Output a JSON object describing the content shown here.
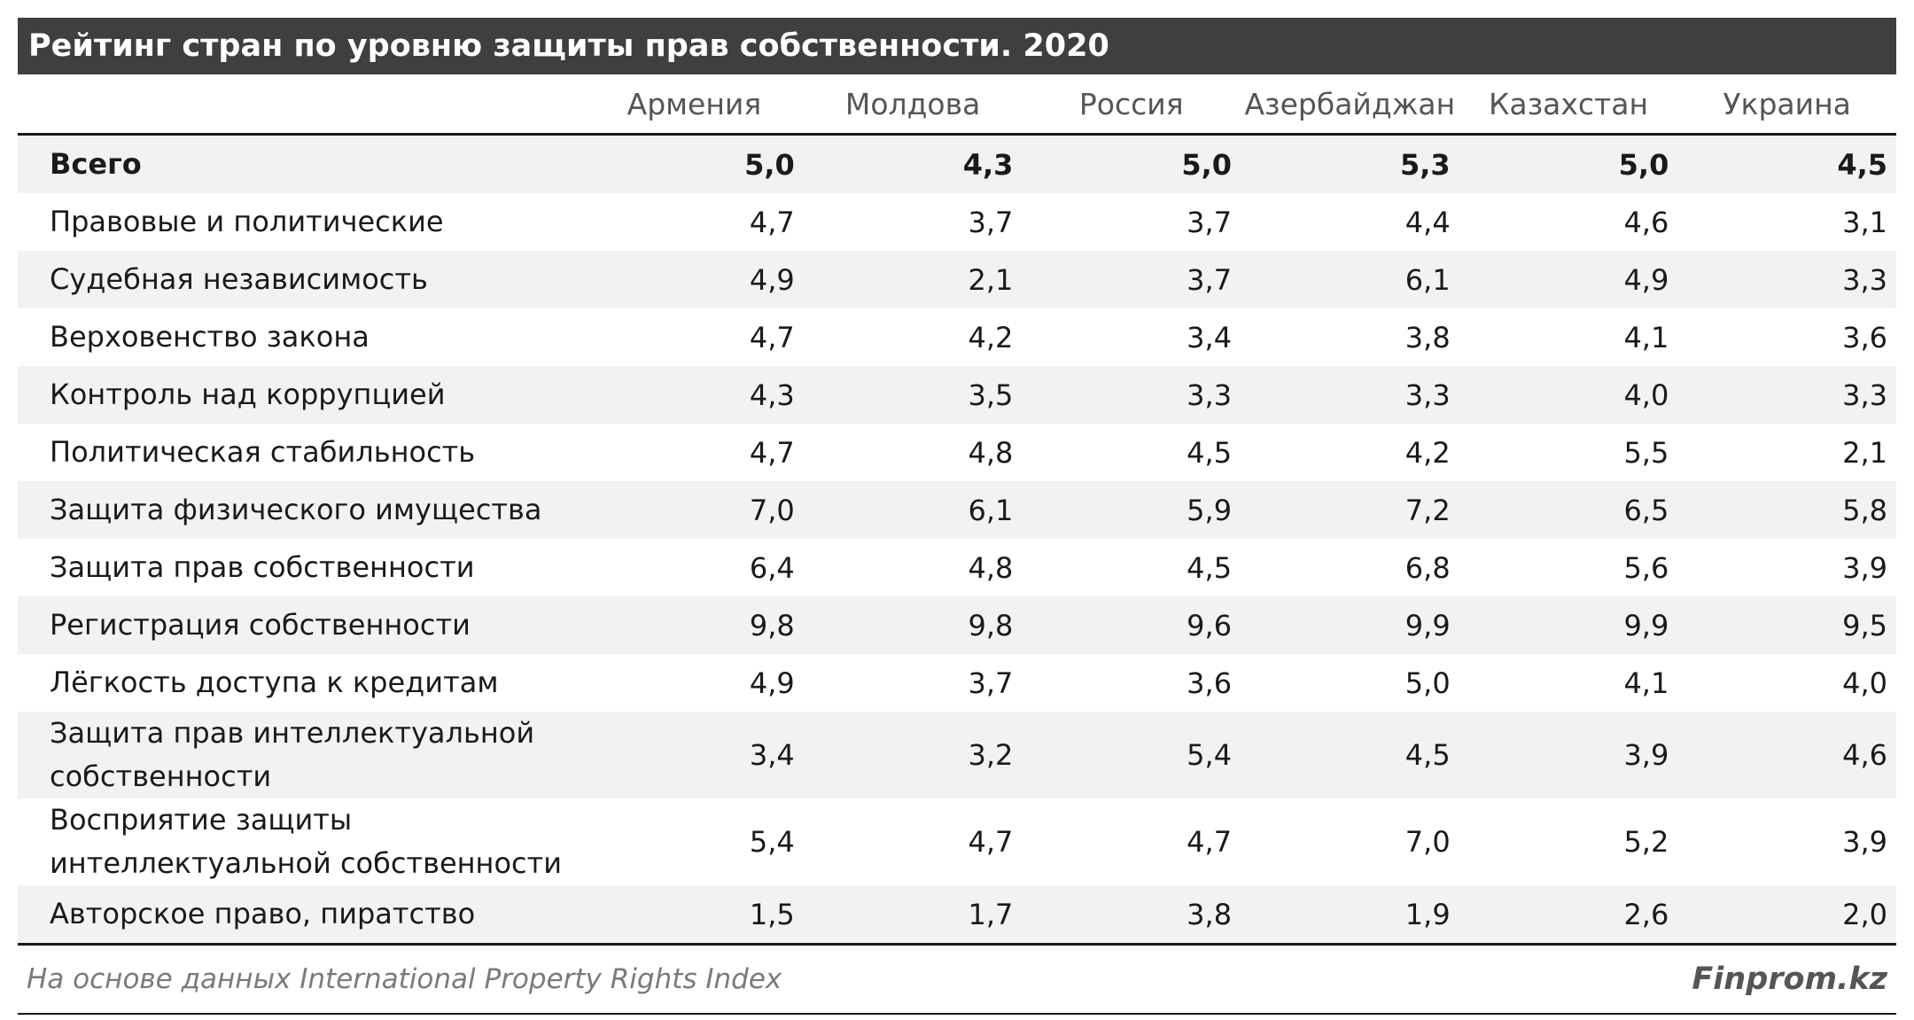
{
  "title": "Рейтинг стран по уровню защиты прав собственности. 2020",
  "columns": [
    "Армения",
    "Молдова",
    "Россия",
    "Азербайджан",
    "Казахстан",
    "Украина"
  ],
  "rows": [
    {
      "label": "Всего",
      "values": [
        "5,0",
        "4,3",
        "5,0",
        "5,3",
        "5,0",
        "4,5"
      ]
    },
    {
      "label": "Правовые и политические",
      "values": [
        "4,7",
        "3,7",
        "3,7",
        "4,4",
        "4,6",
        "3,1"
      ]
    },
    {
      "label": "Судебная независимость",
      "values": [
        "4,9",
        "2,1",
        "3,7",
        "6,1",
        "4,9",
        "3,3"
      ]
    },
    {
      "label": "Верховенство закона",
      "values": [
        "4,7",
        "4,2",
        "3,4",
        "3,8",
        "4,1",
        "3,6"
      ]
    },
    {
      "label": "Контроль над коррупцией",
      "values": [
        "4,3",
        "3,5",
        "3,3",
        "3,3",
        "4,0",
        "3,3"
      ]
    },
    {
      "label": "Политическая стабильность",
      "values": [
        "4,7",
        "4,8",
        "4,5",
        "4,2",
        "5,5",
        "2,1"
      ]
    },
    {
      "label": "Защита физического имущества",
      "values": [
        "7,0",
        "6,1",
        "5,9",
        "7,2",
        "6,5",
        "5,8"
      ]
    },
    {
      "label": "Защита прав собственности",
      "values": [
        "6,4",
        "4,8",
        "4,5",
        "6,8",
        "5,6",
        "3,9"
      ]
    },
    {
      "label": "Регистрация собственности",
      "values": [
        "9,8",
        "9,8",
        "9,6",
        "9,9",
        "9,9",
        "9,5"
      ]
    },
    {
      "label": "Лёгкость доступа к кредитам",
      "values": [
        "4,9",
        "3,7",
        "3,6",
        "5,0",
        "4,1",
        "4,0"
      ]
    },
    {
      "label": "Защита прав интеллектуальной собственности",
      "values": [
        "3,4",
        "3,2",
        "5,4",
        "4,5",
        "3,9",
        "4,6"
      ]
    },
    {
      "label": "Восприятие защиты интеллектуальной собственности",
      "values": [
        "5,4",
        "4,7",
        "4,7",
        "7,0",
        "5,2",
        "3,9"
      ]
    },
    {
      "label": "Авторское право, пиратство",
      "values": [
        "1,5",
        "1,7",
        "3,8",
        "1,9",
        "2,6",
        "2,0"
      ]
    }
  ],
  "footer": {
    "source": "На основе данных International Property Rights Index",
    "brand": "Finprom.kz"
  },
  "chart_data": {
    "type": "table",
    "title": "Рейтинг стран по уровню защиты прав собственности. 2020",
    "columns": [
      "Армения",
      "Молдова",
      "Россия",
      "Азербайджан",
      "Казахстан",
      "Украина"
    ],
    "rows": [
      {
        "label": "Всего",
        "values": [
          5.0,
          4.3,
          5.0,
          5.3,
          5.0,
          4.5
        ]
      },
      {
        "label": "Правовые и политические",
        "values": [
          4.7,
          3.7,
          3.7,
          4.4,
          4.6,
          3.1
        ]
      },
      {
        "label": "Судебная независимость",
        "values": [
          4.9,
          2.1,
          3.7,
          6.1,
          4.9,
          3.3
        ]
      },
      {
        "label": "Верховенство закона",
        "values": [
          4.7,
          4.2,
          3.4,
          3.8,
          4.1,
          3.6
        ]
      },
      {
        "label": "Контроль над коррупцией",
        "values": [
          4.3,
          3.5,
          3.3,
          3.3,
          4.0,
          3.3
        ]
      },
      {
        "label": "Политическая стабильность",
        "values": [
          4.7,
          4.8,
          4.5,
          4.2,
          5.5,
          2.1
        ]
      },
      {
        "label": "Защита физического имущества",
        "values": [
          7.0,
          6.1,
          5.9,
          7.2,
          6.5,
          5.8
        ]
      },
      {
        "label": "Защита прав собственности",
        "values": [
          6.4,
          4.8,
          4.5,
          6.8,
          5.6,
          3.9
        ]
      },
      {
        "label": "Регистрация собственности",
        "values": [
          9.8,
          9.8,
          9.6,
          9.9,
          9.9,
          9.5
        ]
      },
      {
        "label": "Лёгкость доступа к кредитам",
        "values": [
          4.9,
          3.7,
          3.6,
          5.0,
          4.1,
          4.0
        ]
      },
      {
        "label": "Защита прав интеллектуальной собственности",
        "values": [
          3.4,
          3.2,
          5.4,
          4.5,
          3.9,
          4.6
        ]
      },
      {
        "label": "Восприятие защиты интеллектуальной собственности",
        "values": [
          5.4,
          4.7,
          4.7,
          7.0,
          5.2,
          3.9
        ]
      },
      {
        "label": "Авторское право, пиратство",
        "values": [
          1.5,
          1.7,
          3.8,
          1.9,
          2.6,
          2.0
        ]
      }
    ]
  }
}
